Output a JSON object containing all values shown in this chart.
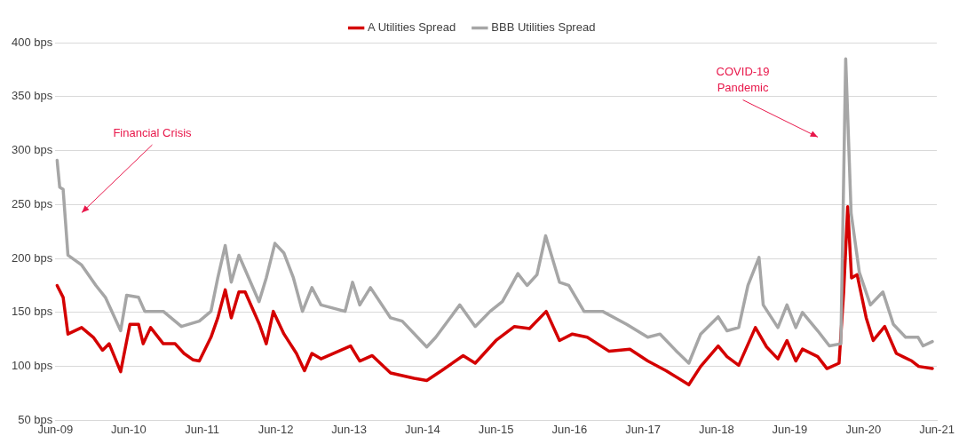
{
  "chart_data": {
    "type": "line",
    "legend": "top",
    "grid": "y",
    "marker": "none",
    "line_style": "solid",
    "xlim": [
      "2009-06",
      "2021-06"
    ],
    "xticks": [
      {
        "value": "2009-06",
        "label": "Jun-09"
      },
      {
        "value": "2010-06",
        "label": "Jun-10"
      },
      {
        "value": "2011-06",
        "label": "Jun-11"
      },
      {
        "value": "2012-06",
        "label": "Jun-12"
      },
      {
        "value": "2013-06",
        "label": "Jun-13"
      },
      {
        "value": "2014-06",
        "label": "Jun-14"
      },
      {
        "value": "2015-06",
        "label": "Jun-15"
      },
      {
        "value": "2016-06",
        "label": "Jun-16"
      },
      {
        "value": "2017-06",
        "label": "Jun-17"
      },
      {
        "value": "2018-06",
        "label": "Jun-18"
      },
      {
        "value": "2019-06",
        "label": "Jun-19"
      },
      {
        "value": "2020-06",
        "label": "Jun-20"
      },
      {
        "value": "2021-06",
        "label": "Jun-21"
      }
    ],
    "ylim": [
      50,
      400
    ],
    "yticks": [
      {
        "value": 50,
        "label": "50 bps"
      },
      {
        "value": 100,
        "label": "100 bps"
      },
      {
        "value": 150,
        "label": "150 bps"
      },
      {
        "value": 200,
        "label": "200 bps"
      },
      {
        "value": 250,
        "label": "250 bps"
      },
      {
        "value": 300,
        "label": "300 bps"
      },
      {
        "value": 350,
        "label": "350 bps"
      },
      {
        "value": 400,
        "label": "400 bps"
      }
    ],
    "series": [
      {
        "name": "A Utilities Spread",
        "color": "#d40000",
        "x": [
          "2009-06-10",
          "2009-07-10",
          "2009-08-03",
          "2009-10-10",
          "2009-12-07",
          "2010-01-22",
          "2010-02-24",
          "2010-04-22",
          "2010-06-07",
          "2010-07-20",
          "2010-08-12",
          "2010-09-18",
          "2010-11-20",
          "2011-01-18",
          "2011-03-03",
          "2011-04-18",
          "2011-05-18",
          "2011-07-15",
          "2011-08-18",
          "2011-09-24",
          "2011-10-24",
          "2011-12-01",
          "2012-01-01",
          "2012-03-12",
          "2012-04-15",
          "2012-05-20",
          "2012-07-12",
          "2012-09-12",
          "2012-10-22",
          "2012-11-28",
          "2013-01-12",
          "2013-06-08",
          "2013-07-24",
          "2013-09-24",
          "2013-12-24",
          "2014-04-20",
          "2014-06-22",
          "2014-09-03",
          "2014-12-20",
          "2015-02-18",
          "2015-06-01",
          "2015-09-01",
          "2015-11-15",
          "2016-02-06",
          "2016-04-12",
          "2016-06-15",
          "2016-08-28",
          "2016-12-15",
          "2017-03-28",
          "2017-06-25",
          "2017-09-24",
          "2018-01-15",
          "2018-03-15",
          "2018-06-10",
          "2018-07-24",
          "2018-09-20",
          "2018-12-12",
          "2019-02-06",
          "2019-04-03",
          "2019-05-18",
          "2019-07-01",
          "2019-08-03",
          "2019-10-18",
          "2019-12-03",
          "2020-02-01",
          "2020-02-24",
          "2020-03-15",
          "2020-04-03",
          "2020-05-01",
          "2020-06-15",
          "2020-07-20",
          "2020-09-15",
          "2020-11-12",
          "2021-01-28",
          "2021-03-03",
          "2021-05-10"
        ],
        "values": [
          175,
          164,
          130,
          136,
          127,
          115,
          121,
          95,
          139,
          139,
          121,
          136,
          121,
          121,
          112,
          106,
          105,
          127,
          145,
          171,
          145,
          169,
          169,
          139,
          121,
          151,
          130,
          112,
          96,
          112,
          107,
          119,
          105,
          110,
          94,
          89,
          87,
          96,
          110,
          103,
          124,
          137,
          135,
          151,
          124,
          130,
          127,
          114,
          116,
          105,
          96,
          83,
          100,
          119,
          109,
          101,
          136,
          118,
          107,
          124,
          105,
          116,
          109,
          98,
          103,
          169,
          248,
          182,
          185,
          145,
          124,
          137,
          112,
          105,
          100,
          98
        ]
      },
      {
        "name": "BBB Utilities Spread",
        "color": "#a6a6a6",
        "x": [
          "2009-06-10",
          "2009-06-23",
          "2009-07-10",
          "2009-08-03",
          "2009-10-10",
          "2009-12-20",
          "2010-02-05",
          "2010-04-22",
          "2010-05-22",
          "2010-07-20",
          "2010-08-20",
          "2010-11-20",
          "2011-02-18",
          "2011-05-18",
          "2011-07-15",
          "2011-08-18",
          "2011-09-24",
          "2011-10-24",
          "2011-12-01",
          "2012-03-10",
          "2012-04-15",
          "2012-05-28",
          "2012-07-12",
          "2012-08-28",
          "2012-10-12",
          "2012-11-28",
          "2013-01-12",
          "2013-05-12",
          "2013-06-18",
          "2013-07-24",
          "2013-09-15",
          "2013-12-24",
          "2014-02-20",
          "2014-06-22",
          "2014-08-06",
          "2014-12-03",
          "2015-02-18",
          "2015-05-03",
          "2015-07-03",
          "2015-09-18",
          "2015-11-03",
          "2015-12-22",
          "2016-02-03",
          "2016-04-12",
          "2016-05-28",
          "2016-08-12",
          "2016-11-12",
          "2017-03-12",
          "2017-06-25",
          "2017-08-25",
          "2017-11-10",
          "2018-01-15",
          "2018-03-15",
          "2018-06-10",
          "2018-07-24",
          "2018-09-20",
          "2018-11-05",
          "2018-12-30",
          "2019-01-20",
          "2019-04-03",
          "2019-05-18",
          "2019-07-01",
          "2019-08-03",
          "2019-10-18",
          "2019-12-15",
          "2020-02-10",
          "2020-03-05",
          "2020-04-01",
          "2020-05-12",
          "2020-07-06",
          "2020-09-06",
          "2020-10-28",
          "2020-12-28",
          "2021-02-28",
          "2021-03-25",
          "2021-05-10"
        ],
        "values": [
          291,
          266,
          264,
          203,
          194,
          175,
          164,
          133,
          166,
          164,
          151,
          151,
          137,
          142,
          151,
          182,
          212,
          178,
          203,
          160,
          182,
          214,
          205,
          182,
          151,
          173,
          157,
          151,
          178,
          157,
          173,
          145,
          142,
          118,
          127,
          157,
          137,
          151,
          160,
          186,
          175,
          185,
          221,
          178,
          175,
          151,
          151,
          139,
          127,
          130,
          115,
          103,
          130,
          146,
          133,
          136,
          175,
          201,
          157,
          136,
          157,
          136,
          150,
          133,
          119,
          121,
          385,
          242,
          187,
          157,
          169,
          139,
          127,
          127,
          119,
          123
        ]
      }
    ],
    "annotations": [
      "Financial Crisis",
      "COVID-19\nPandemic"
    ]
  }
}
